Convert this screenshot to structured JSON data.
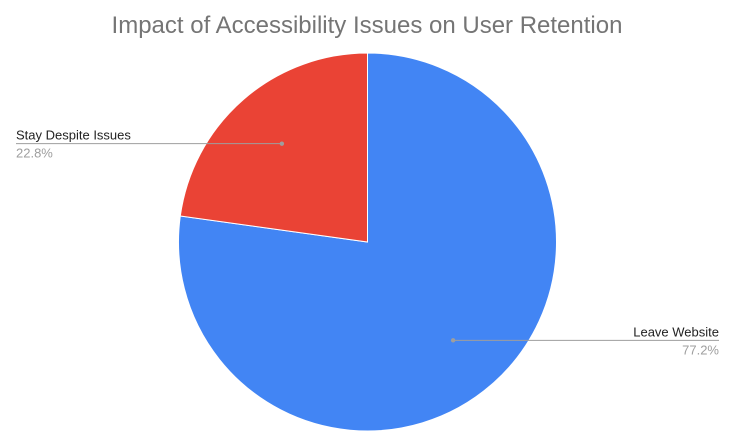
{
  "chart_data": {
    "type": "pie",
    "title": "Impact of Accessibility Issues on User Retention",
    "start_angle_deg": 0,
    "direction": "clockwise",
    "slices": [
      {
        "label": "Leave Website",
        "value": 77.2,
        "percent_label": "77.2%",
        "color": "#4285f4"
      },
      {
        "label": "Stay Despite Issues",
        "value": 22.8,
        "percent_label": "22.8%",
        "color": "#ea4335"
      }
    ],
    "legend": "none",
    "label_style": "leader-lines"
  },
  "colors": {
    "title": "#757575",
    "label": "#222222",
    "percent": "#9e9e9e",
    "leader_line": "#9e9e9e",
    "slice_border": "#ffffff"
  }
}
